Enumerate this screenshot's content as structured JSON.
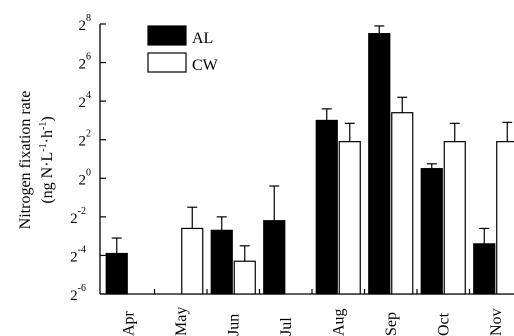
{
  "chart_data": {
    "type": "bar",
    "ylabel_line1": "Nitrogen fixation rate",
    "ylabel_line2_parts": [
      "(ng N·L",
      "-1",
      "·h",
      "-1",
      ")"
    ],
    "y_scale": "log2",
    "ylim_exponent": [
      -6,
      8
    ],
    "yticks": [
      {
        "base": "2",
        "exp": "8"
      },
      {
        "base": "2",
        "exp": "6"
      },
      {
        "base": "2",
        "exp": "4"
      },
      {
        "base": "2",
        "exp": "2"
      },
      {
        "base": "2",
        "exp": "0"
      },
      {
        "base": "2",
        "exp": "-2"
      },
      {
        "base": "2",
        "exp": "-4"
      },
      {
        "base": "2",
        "exp": "-6"
      }
    ],
    "categories": [
      "Apr",
      "May",
      "Jun",
      "Jul",
      "Aug",
      "Sep",
      "Oct",
      "Nov"
    ],
    "legend_position": "top-left",
    "series": [
      {
        "name": "AL",
        "color": "#000000",
        "log2_values": [
          -3.9,
          null,
          -2.7,
          -2.2,
          3.0,
          7.5,
          0.5,
          -3.4
        ],
        "log2_err_upper": [
          -3.1,
          null,
          -2.0,
          -0.4,
          3.6,
          7.9,
          0.75,
          -2.6
        ]
      },
      {
        "name": "CW",
        "color": "#ffffff",
        "log2_values": [
          null,
          -2.6,
          -4.3,
          null,
          1.9,
          3.4,
          1.9,
          1.9
        ],
        "log2_err_upper": [
          null,
          -1.5,
          -3.5,
          null,
          2.85,
          4.2,
          2.85,
          2.9
        ]
      }
    ]
  }
}
